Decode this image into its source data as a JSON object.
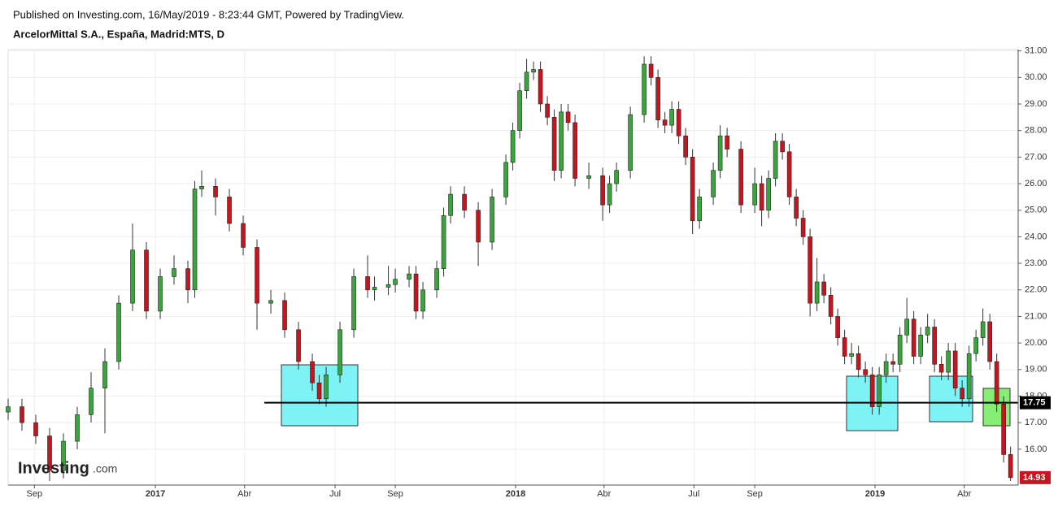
{
  "header": {
    "published": "Published on Investing.com, 16/May/2019 - 8:23:44 GMT, Powered by TradingView.",
    "instrument": "ArcelorMittal S.A., España, Madrid:MTS, D"
  },
  "logo": {
    "brand": "Investing",
    "suffix": ".com"
  },
  "chart_data": {
    "type": "candlestick",
    "up_color": "#3aa53a",
    "down_color": "#c8141e",
    "xlim": [
      0,
      146.1
    ],
    "ylim": [
      14.65,
      31.05
    ],
    "grid": true,
    "xticks": [
      {
        "value": 3.8,
        "label": "Sep"
      },
      {
        "value": 21.3,
        "label": "2017"
      },
      {
        "value": 34.2,
        "label": "Abr"
      },
      {
        "value": 47.3,
        "label": "Jul"
      },
      {
        "value": 56,
        "label": "Sep"
      },
      {
        "value": 73.4,
        "label": "2018"
      },
      {
        "value": 86.2,
        "label": "Abr"
      },
      {
        "value": 99.2,
        "label": "Jul"
      },
      {
        "value": 108,
        "label": "Sep"
      },
      {
        "value": 125.4,
        "label": "2019"
      },
      {
        "value": 138.3,
        "label": "Abr"
      }
    ],
    "yticks": [
      {
        "value": 16,
        "label": "16.00"
      },
      {
        "value": 17,
        "label": "17.00"
      },
      {
        "value": 18,
        "label": "18.00"
      },
      {
        "value": 19,
        "label": "19.00"
      },
      {
        "value": 20,
        "label": "20.00"
      },
      {
        "value": 21,
        "label": "21.00"
      },
      {
        "value": 22,
        "label": "22.00"
      },
      {
        "value": 23,
        "label": "23.00"
      },
      {
        "value": 24,
        "label": "24.00"
      },
      {
        "value": 25,
        "label": "25.00"
      },
      {
        "value": 26,
        "label": "26.00"
      },
      {
        "value": 27,
        "label": "27.00"
      },
      {
        "value": 28,
        "label": "28.00"
      },
      {
        "value": 29,
        "label": "29.00"
      },
      {
        "value": 30,
        "label": "30.00"
      },
      {
        "value": 31,
        "label": "31.00"
      }
    ],
    "hline": {
      "value": 17.75,
      "label": "17.75"
    },
    "last_price": {
      "value": 14.93,
      "label": "14.93"
    },
    "candles": [
      [
        0,
        17.4,
        17.9,
        17.1,
        17.6
      ],
      [
        2,
        17.6,
        17.9,
        16.7,
        17.0
      ],
      [
        4,
        17.0,
        17.3,
        16.2,
        16.5
      ],
      [
        6,
        16.5,
        16.8,
        14.8,
        15.2
      ],
      [
        8,
        15.2,
        16.6,
        14.9,
        16.3
      ],
      [
        10,
        16.3,
        17.6,
        16.0,
        17.3
      ],
      [
        12,
        17.3,
        18.9,
        17.0,
        18.3
      ],
      [
        14,
        18.3,
        19.8,
        16.6,
        19.3
      ],
      [
        16,
        19.3,
        21.8,
        19.0,
        21.5
      ],
      [
        18,
        21.5,
        24.5,
        21.2,
        23.5
      ],
      [
        20,
        23.5,
        23.8,
        20.9,
        21.2
      ],
      [
        22,
        21.2,
        22.8,
        20.9,
        22.5
      ],
      [
        24,
        22.5,
        23.3,
        22.2,
        22.8
      ],
      [
        26,
        22.8,
        23.1,
        21.5,
        22.0
      ],
      [
        27,
        22.0,
        26.1,
        21.7,
        25.8
      ],
      [
        28,
        25.8,
        26.5,
        25.5,
        25.9
      ],
      [
        30,
        25.9,
        26.2,
        24.8,
        25.5
      ],
      [
        32,
        25.5,
        25.8,
        24.2,
        24.5
      ],
      [
        34,
        24.5,
        24.8,
        23.3,
        23.6
      ],
      [
        36,
        23.6,
        23.9,
        20.5,
        21.5
      ],
      [
        38,
        21.5,
        22.0,
        21.1,
        21.6
      ],
      [
        40,
        21.6,
        21.9,
        20.2,
        20.5
      ],
      [
        42,
        20.5,
        20.8,
        19.0,
        19.3
      ],
      [
        44,
        19.3,
        19.6,
        18.2,
        18.5
      ],
      [
        45,
        18.5,
        18.8,
        17.7,
        17.9
      ],
      [
        46,
        17.9,
        19.1,
        17.6,
        18.8
      ],
      [
        48,
        18.8,
        20.8,
        18.5,
        20.5
      ],
      [
        50,
        20.5,
        22.8,
        20.2,
        22.5
      ],
      [
        52,
        22.5,
        23.3,
        21.7,
        22.0
      ],
      [
        53,
        22.0,
        22.5,
        21.6,
        22.1
      ],
      [
        55,
        22.1,
        22.9,
        21.8,
        22.2
      ],
      [
        56,
        22.2,
        22.8,
        21.9,
        22.4
      ],
      [
        58,
        22.4,
        22.9,
        22.1,
        22.6
      ],
      [
        59,
        22.6,
        22.9,
        20.9,
        21.2
      ],
      [
        60,
        21.2,
        22.3,
        20.9,
        22.0
      ],
      [
        62,
        22.0,
        23.1,
        21.7,
        22.8
      ],
      [
        63,
        22.8,
        25.1,
        22.5,
        24.8
      ],
      [
        64,
        24.8,
        25.9,
        24.5,
        25.6
      ],
      [
        66,
        25.6,
        25.9,
        24.7,
        25.0
      ],
      [
        68,
        25.0,
        25.3,
        22.9,
        23.8
      ],
      [
        70,
        23.8,
        25.8,
        23.5,
        25.5
      ],
      [
        72,
        25.5,
        27.1,
        25.2,
        26.8
      ],
      [
        73,
        26.8,
        28.3,
        26.5,
        28.0
      ],
      [
        74,
        28.0,
        29.8,
        27.7,
        29.5
      ],
      [
        75,
        29.5,
        30.7,
        29.2,
        30.2
      ],
      [
        76,
        30.2,
        30.6,
        29.9,
        30.3
      ],
      [
        77,
        30.3,
        30.6,
        28.7,
        29.0
      ],
      [
        78,
        29.0,
        29.3,
        28.2,
        28.5
      ],
      [
        79,
        28.5,
        28.8,
        26.1,
        26.5
      ],
      [
        80,
        26.5,
        29.0,
        26.2,
        28.7
      ],
      [
        81,
        28.7,
        29.0,
        28.0,
        28.3
      ],
      [
        82,
        28.3,
        28.6,
        25.9,
        26.2
      ],
      [
        84,
        26.2,
        26.8,
        25.8,
        26.3
      ],
      [
        86,
        26.3,
        26.6,
        24.6,
        25.2
      ],
      [
        87,
        25.2,
        26.3,
        24.9,
        26.0
      ],
      [
        88,
        26.0,
        26.8,
        25.7,
        26.5
      ],
      [
        90,
        26.5,
        28.9,
        26.2,
        28.6
      ],
      [
        92,
        28.6,
        30.8,
        28.3,
        30.5
      ],
      [
        93,
        30.5,
        30.8,
        29.7,
        30.0
      ],
      [
        94,
        30.0,
        30.3,
        28.1,
        28.4
      ],
      [
        95,
        28.4,
        28.7,
        27.9,
        28.2
      ],
      [
        96,
        28.2,
        29.1,
        27.9,
        28.8
      ],
      [
        97,
        28.8,
        29.1,
        27.5,
        27.8
      ],
      [
        98,
        27.8,
        28.1,
        26.7,
        27.0
      ],
      [
        99,
        27.0,
        27.3,
        24.1,
        24.6
      ],
      [
        100,
        24.6,
        25.8,
        24.3,
        25.5
      ],
      [
        102,
        25.5,
        26.8,
        25.2,
        26.5
      ],
      [
        103,
        26.5,
        28.2,
        26.2,
        27.8
      ],
      [
        104,
        27.8,
        28.1,
        27.0,
        27.3
      ],
      [
        106,
        27.3,
        27.6,
        24.9,
        25.2
      ],
      [
        108,
        25.2,
        26.6,
        24.9,
        26.0
      ],
      [
        109,
        26.0,
        26.3,
        24.4,
        25.0
      ],
      [
        110,
        25.0,
        26.5,
        24.7,
        26.2
      ],
      [
        111,
        26.2,
        27.9,
        25.9,
        27.6
      ],
      [
        112,
        27.6,
        27.9,
        26.9,
        27.2
      ],
      [
        113,
        27.2,
        27.5,
        25.2,
        25.5
      ],
      [
        114,
        25.5,
        25.8,
        24.4,
        24.7
      ],
      [
        115,
        24.7,
        25.0,
        23.7,
        24.0
      ],
      [
        116,
        24.0,
        24.3,
        21.0,
        21.5
      ],
      [
        117,
        21.5,
        23.2,
        21.2,
        22.3
      ],
      [
        118,
        22.3,
        22.6,
        21.5,
        21.8
      ],
      [
        119,
        21.8,
        22.1,
        20.7,
        21.0
      ],
      [
        120,
        21.0,
        21.3,
        19.9,
        20.2
      ],
      [
        121,
        20.2,
        20.5,
        19.2,
        19.5
      ],
      [
        122,
        19.5,
        20.0,
        19.2,
        19.6
      ],
      [
        123,
        19.6,
        19.9,
        18.7,
        19.0
      ],
      [
        124,
        19.0,
        19.3,
        18.5,
        18.8
      ],
      [
        125,
        18.8,
        19.1,
        17.3,
        17.6
      ],
      [
        126,
        17.6,
        19.1,
        17.3,
        18.8
      ],
      [
        127,
        18.8,
        19.6,
        18.5,
        19.3
      ],
      [
        128,
        19.3,
        19.6,
        18.9,
        19.2
      ],
      [
        129,
        19.2,
        20.6,
        18.9,
        20.3
      ],
      [
        130,
        20.3,
        21.7,
        20.0,
        20.9
      ],
      [
        131,
        20.9,
        21.2,
        19.2,
        19.5
      ],
      [
        132,
        19.5,
        20.6,
        19.2,
        20.3
      ],
      [
        133,
        20.3,
        21.1,
        20.0,
        20.6
      ],
      [
        134,
        20.6,
        20.9,
        18.9,
        19.2
      ],
      [
        135,
        19.2,
        19.5,
        18.6,
        18.9
      ],
      [
        136,
        18.9,
        20.0,
        18.6,
        19.7
      ],
      [
        137,
        19.7,
        20.0,
        18.0,
        18.3
      ],
      [
        138,
        18.3,
        18.6,
        17.6,
        17.9
      ],
      [
        139,
        17.9,
        19.9,
        17.6,
        19.6
      ],
      [
        140,
        19.6,
        20.5,
        19.3,
        20.2
      ],
      [
        141,
        20.2,
        21.3,
        19.9,
        20.8
      ],
      [
        142,
        20.8,
        21.1,
        19.0,
        19.3
      ],
      [
        143,
        19.3,
        19.6,
        17.4,
        17.7
      ],
      [
        144,
        17.7,
        18.0,
        15.5,
        15.8
      ],
      [
        145,
        15.8,
        16.1,
        14.8,
        14.93
      ]
    ]
  }
}
